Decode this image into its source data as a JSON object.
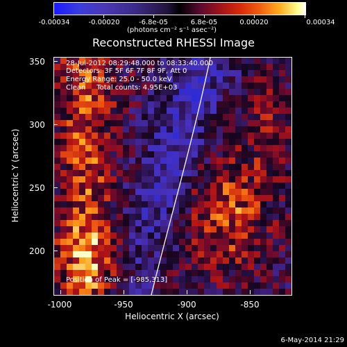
{
  "colorbar": {
    "labels": [
      "-0.00034",
      "-0.00020",
      "-6.8e-05",
      "6.8e-05",
      "0.00020",
      "0.00034"
    ],
    "units": "(photons cm⁻² s⁻¹ asec⁻²)"
  },
  "title": "Reconstructed RHESSI Image",
  "info": {
    "time_range": "28-Jul-2012 08:29:48.000 to 08:33:40.000",
    "detectors": "Detectors: 3F 5F 6F 7F 8F 9F, Att 0",
    "energy": "Energy Range: 25.0 - 50.0 keV",
    "clean": "Clean     Total counts: 4.95E+03"
  },
  "peak": "Position of Peak = [-985,313]",
  "axes": {
    "xlabel": "Heliocentric X (arcsec)",
    "ylabel": "Heliocentric Y (arcsec)",
    "xticks": [
      "-1000",
      "-950",
      "-900",
      "-850"
    ],
    "yticks": [
      "350",
      "300",
      "250",
      "200"
    ]
  },
  "timestamp": "6-May-2014 21:29"
}
